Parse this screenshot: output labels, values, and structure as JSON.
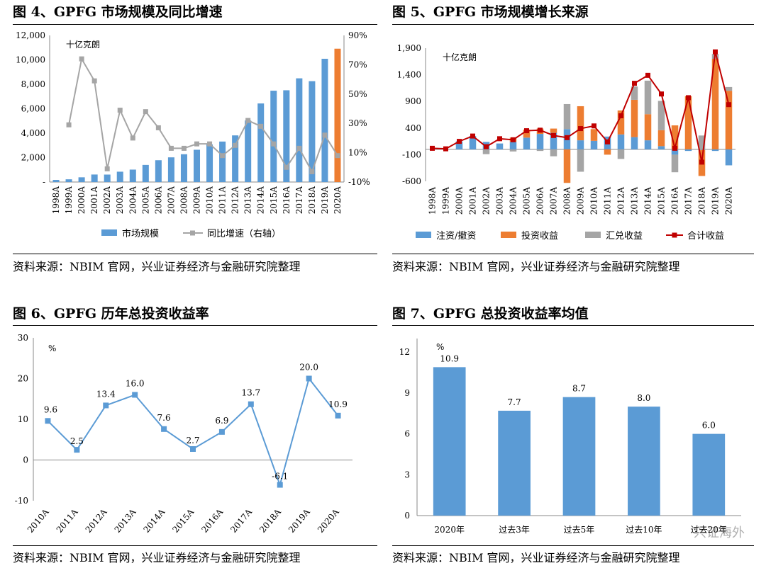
{
  "source": "资料来源：NBIM 官网，兴业证券经济与金融研究院整理",
  "watermark": "兴证海外",
  "charts": {
    "fig4": {
      "title": "图 4、GPFG 市场规模及同比增速",
      "unit": "十亿克朗"
    },
    "fig5": {
      "title": "图 5、GPFG 市场规模增长来源",
      "unit": "十亿克朗"
    },
    "fig6": {
      "title": "图 6、GPFG 历年总投资收益率",
      "unit": "%"
    },
    "fig7": {
      "title": "图 7、GPFG 总投资收益率均值",
      "unit": "%"
    }
  },
  "chart_data": [
    {
      "id": "fig4",
      "type": "bar",
      "title": "图 4、GPFG 市场规模及同比增速",
      "unit_label": "十亿克朗",
      "categories": [
        "1998A",
        "1999A",
        "2000A",
        "2001A",
        "2002A",
        "2003A",
        "2004A",
        "2005A",
        "2006A",
        "2007A",
        "2008A",
        "2009A",
        "2010A",
        "2011A",
        "2012A",
        "2013A",
        "2014A",
        "2015A",
        "2016A",
        "2017A",
        "2018A",
        "2019A",
        "2020A"
      ],
      "series": [
        {
          "name": "市场规模",
          "type": "bar",
          "axis": "left",
          "color": "#5b9bd5",
          "highlight_last_color": "#ed7d31",
          "values": [
            172,
            222,
            386,
            614,
            609,
            845,
            1016,
            1399,
            1784,
            2019,
            2275,
            2640,
            3077,
            3312,
            3816,
            5038,
            6431,
            7475,
            7510,
            8488,
            8256,
            10088,
            10914
          ]
        },
        {
          "name": "同比增速（右轴）",
          "type": "line",
          "axis": "right",
          "color": "#a5a5a5",
          "values": [
            null,
            29,
            74,
            59,
            -1,
            39,
            20,
            38,
            27,
            13,
            13,
            16,
            16,
            8,
            15,
            32,
            28,
            16,
            0,
            13,
            -3,
            22,
            8
          ]
        }
      ],
      "yleft": {
        "min": 0,
        "max": 12000,
        "ticks": [
          "-",
          "2,000",
          "4,000",
          "6,000",
          "8,000",
          "10,000",
          "12,000"
        ]
      },
      "yright": {
        "min": -10,
        "max": 90,
        "ticks": [
          "-10%",
          "10%",
          "30%",
          "50%",
          "70%",
          "90%"
        ]
      },
      "legend": [
        "市场规模",
        "同比增速（右轴）"
      ]
    },
    {
      "id": "fig5",
      "type": "bar",
      "stacked": true,
      "title": "图 5、GPFG 市场规模增长来源",
      "unit_label": "十亿克朗",
      "categories": [
        "1998A",
        "1999A",
        "2000A",
        "2001A",
        "2002A",
        "2003A",
        "2004A",
        "2005A",
        "2006A",
        "2007A",
        "2008A",
        "2009A",
        "2010A",
        "2011A",
        "2012A",
        "2013A",
        "2014A",
        "2015A",
        "2016A",
        "2017A",
        "2018A",
        "2019A",
        "2020A"
      ],
      "series": [
        {
          "name": "注资/撤资",
          "type": "bar",
          "color": "#5b9bd5",
          "values": [
            2,
            4,
            150,
            250,
            140,
            110,
            140,
            220,
            290,
            310,
            380,
            170,
            160,
            240,
            280,
            230,
            170,
            60,
            -100,
            -30,
            -10,
            -30,
            -300
          ]
        },
        {
          "name": "投资收益",
          "type": "bar",
          "color": "#ed7d31",
          "values": [
            0,
            0,
            0,
            0,
            0,
            0,
            80,
            150,
            100,
            80,
            -630,
            640,
            220,
            -100,
            450,
            700,
            490,
            300,
            450,
            1000,
            -490,
            1700,
            1100
          ]
        },
        {
          "name": "汇兑收益",
          "type": "bar",
          "color": "#a5a5a5",
          "values": [
            0,
            0,
            0,
            0,
            -90,
            0,
            -40,
            0,
            -30,
            -130,
            470,
            -420,
            0,
            0,
            -180,
            250,
            630,
            550,
            -330,
            0,
            260,
            90,
            70
          ]
        },
        {
          "name": "合计收益",
          "type": "line",
          "color": "#c00000",
          "values": [
            20,
            10,
            150,
            250,
            50,
            200,
            180,
            350,
            360,
            260,
            220,
            390,
            440,
            140,
            630,
            1240,
            1390,
            1040,
            20,
            970,
            -240,
            1830,
            840
          ]
        }
      ],
      "yaxis": {
        "min": -600,
        "max": 1900,
        "ticks": [
          "-600",
          "-100",
          "400",
          "900",
          "1,400",
          "1,900"
        ]
      },
      "legend": [
        "注资/撤资",
        "投资收益",
        "汇兑收益",
        "合计收益"
      ]
    },
    {
      "id": "fig6",
      "type": "line",
      "title": "图 6、GPFG 历年总投资收益率",
      "unit_label": "%",
      "categories": [
        "2010A",
        "2011A",
        "2012A",
        "2013A",
        "2014A",
        "2015A",
        "2016A",
        "2017A",
        "2018A",
        "2019A",
        "2020A"
      ],
      "values": [
        9.6,
        2.5,
        13.4,
        16.0,
        7.6,
        2.7,
        6.9,
        13.7,
        -6.1,
        20.0,
        10.9
      ],
      "data_labels": [
        "9.6",
        "2.5",
        "13.4",
        "16.0",
        "7.6",
        "2.7",
        "6.9",
        "13.7",
        "-6.1",
        "20.0",
        "10.9"
      ],
      "yaxis": {
        "min": -10,
        "max": 30,
        "ticks": [
          "-10",
          "0",
          "10",
          "20",
          "30"
        ]
      },
      "color": "#5b9bd5"
    },
    {
      "id": "fig7",
      "type": "bar",
      "title": "图 7、GPFG 总投资收益率均值",
      "unit_label": "%",
      "categories": [
        "2020年",
        "过去3年",
        "过去5年",
        "过去10年",
        "过去20年"
      ],
      "values": [
        10.9,
        7.7,
        8.7,
        8.0,
        6.0
      ],
      "data_labels": [
        "10.9",
        "7.7",
        "8.7",
        "8.0",
        "6.0"
      ],
      "yaxis": {
        "min": 0,
        "max": 13,
        "ticks": [
          "0",
          "3",
          "6",
          "9",
          "12"
        ]
      },
      "color": "#5b9bd5"
    }
  ]
}
